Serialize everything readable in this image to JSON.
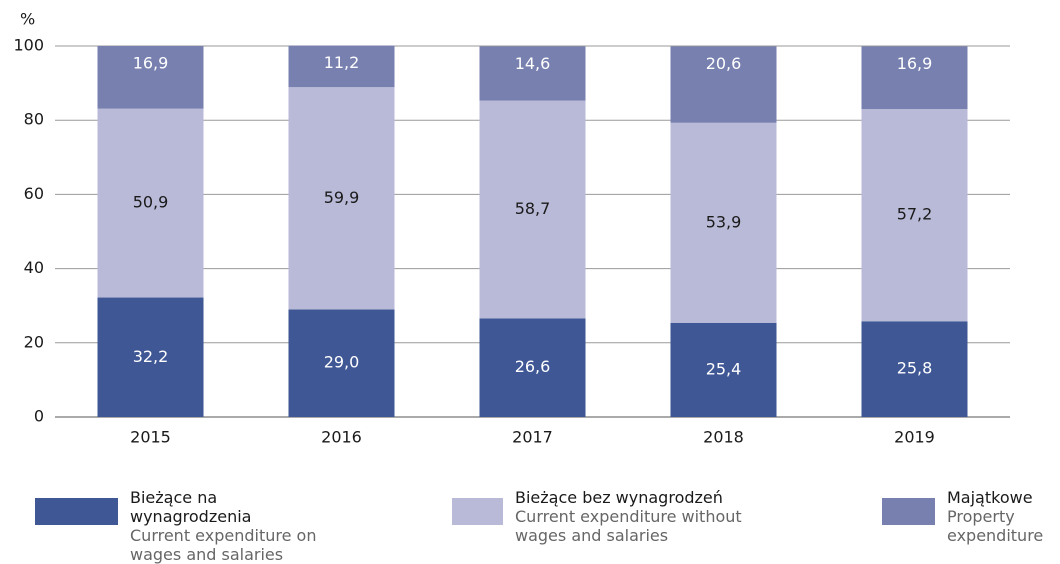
{
  "chart_data": {
    "type": "bar",
    "stacked": true,
    "y_label": "%",
    "categories": [
      "2015",
      "2016",
      "2017",
      "2018",
      "2019"
    ],
    "series": [
      {
        "name": "Bieżące na wynagrodzenia",
        "name_en": "Current expenditure on wages and salaries",
        "color": "#3f5795",
        "values": [
          32.2,
          29.0,
          26.6,
          25.4,
          25.8
        ],
        "value_labels": [
          "32,2",
          "29,0",
          "26,6",
          "25,4",
          "25,8"
        ]
      },
      {
        "name": "Bieżące bez wynagrodzeń",
        "name_en": "Current expenditure without wages and salaries",
        "color": "#b9bad8",
        "values": [
          50.9,
          59.9,
          58.7,
          53.9,
          57.2
        ],
        "value_labels": [
          "50,9",
          "59,9",
          "58,7",
          "53,9",
          "57,2"
        ]
      },
      {
        "name": "Majątkowe",
        "name_en": "Property expenditure",
        "color": "#7880b0",
        "values": [
          16.9,
          11.2,
          14.6,
          20.6,
          16.9
        ],
        "value_labels": [
          "16,9",
          "11,2",
          "14,6",
          "20,6",
          "16,9"
        ]
      }
    ],
    "ylim": [
      0,
      100
    ],
    "yticks": [
      0,
      20,
      40,
      60,
      80,
      100
    ],
    "grid": true
  }
}
